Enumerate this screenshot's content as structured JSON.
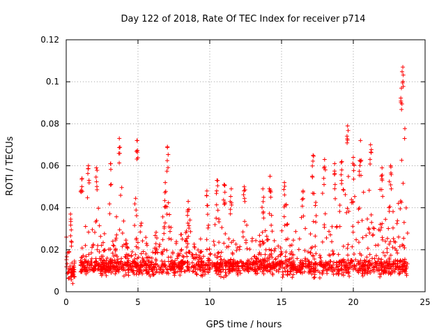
{
  "chart_data": {
    "type": "scatter",
    "title": "Day 122 of 2018, Rate Of TEC Index for receiver p714",
    "xlabel": "GPS time / hours",
    "ylabel": "ROTI / TECUs",
    "xlim": [
      0,
      25
    ],
    "ylim": [
      0,
      0.12
    ],
    "xticks": [
      "0",
      "5",
      "10",
      "15",
      "20",
      "25"
    ],
    "yticks": [
      "0",
      "0.02",
      "0.04",
      "0.06",
      "0.08",
      "0.1",
      "0.12"
    ],
    "grid": true,
    "marker": "+",
    "series": [
      {
        "name": "ROTI",
        "color": "#ff0000",
        "time_range_hours": [
          0,
          23.8
        ],
        "typical_baseline": 0.012,
        "peaks": [
          {
            "x": 0.3,
            "y": 0.037
          },
          {
            "x": 1.1,
            "y": 0.054
          },
          {
            "x": 1.55,
            "y": 0.06
          },
          {
            "x": 2.1,
            "y": 0.059
          },
          {
            "x": 3.1,
            "y": 0.061
          },
          {
            "x": 3.7,
            "y": 0.073
          },
          {
            "x": 4.95,
            "y": 0.072
          },
          {
            "x": 6.9,
            "y": 0.052
          },
          {
            "x": 7.05,
            "y": 0.069
          },
          {
            "x": 8.5,
            "y": 0.043
          },
          {
            "x": 9.8,
            "y": 0.048
          },
          {
            "x": 10.5,
            "y": 0.053
          },
          {
            "x": 11.0,
            "y": 0.051
          },
          {
            "x": 11.5,
            "y": 0.049
          },
          {
            "x": 12.4,
            "y": 0.05
          },
          {
            "x": 13.7,
            "y": 0.049
          },
          {
            "x": 14.2,
            "y": 0.055
          },
          {
            "x": 15.2,
            "y": 0.052
          },
          {
            "x": 16.5,
            "y": 0.048
          },
          {
            "x": 17.2,
            "y": 0.065
          },
          {
            "x": 18.0,
            "y": 0.063
          },
          {
            "x": 18.7,
            "y": 0.061
          },
          {
            "x": 19.2,
            "y": 0.062
          },
          {
            "x": 19.6,
            "y": 0.079
          },
          {
            "x": 20.0,
            "y": 0.064
          },
          {
            "x": 20.5,
            "y": 0.072
          },
          {
            "x": 21.2,
            "y": 0.07
          },
          {
            "x": 22.0,
            "y": 0.059
          },
          {
            "x": 22.6,
            "y": 0.06
          },
          {
            "x": 23.35,
            "y": 0.097
          },
          {
            "x": 23.45,
            "y": 0.107
          }
        ]
      }
    ]
  }
}
